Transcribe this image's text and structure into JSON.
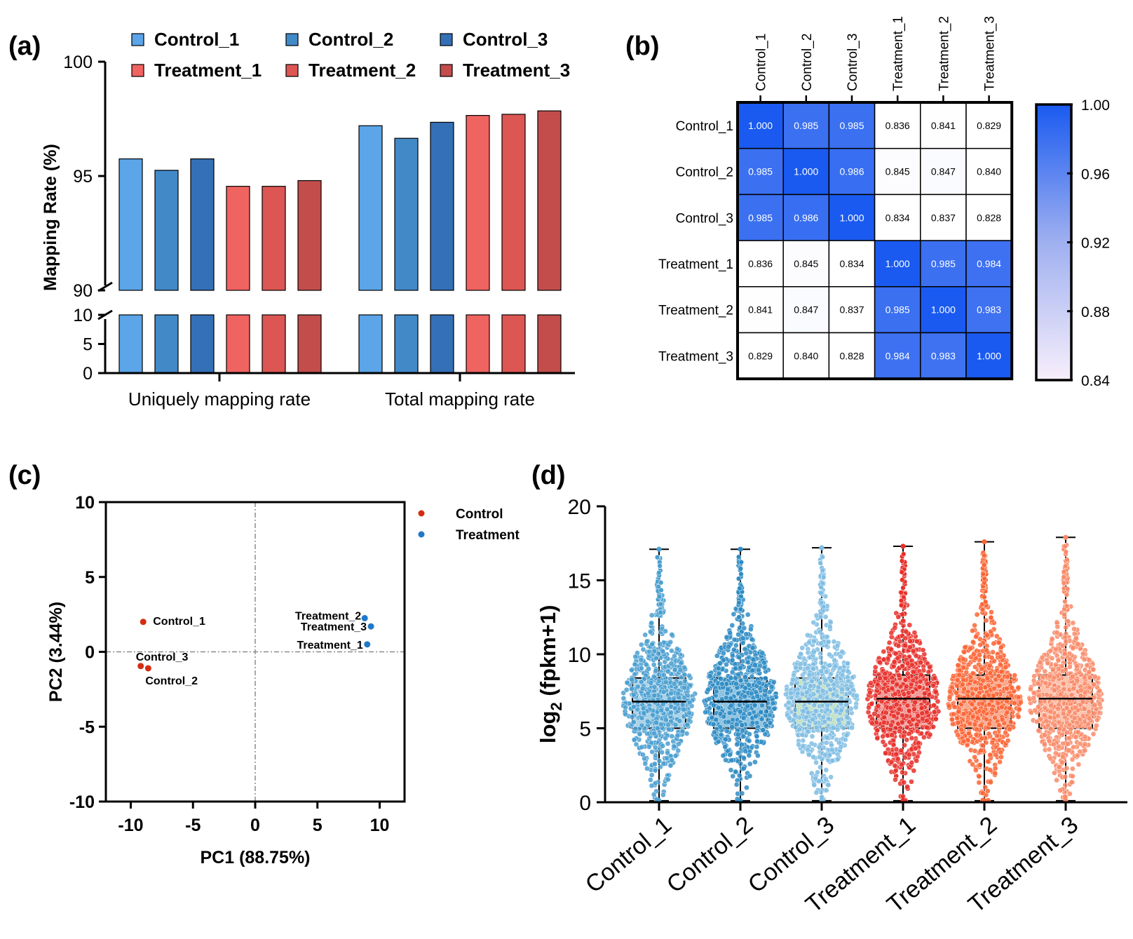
{
  "panels": {
    "a": {
      "label": "(a)"
    },
    "b": {
      "label": "(b)"
    },
    "c": {
      "label": "(c)"
    },
    "d": {
      "label": "(d)"
    }
  },
  "chart_data": [
    {
      "id": "a",
      "type": "bar",
      "ylabel": "Mapping Rate (%)",
      "groups": [
        "Uniquely mapping rate",
        "Total mapping rate"
      ],
      "series": [
        {
          "name": "Control_1",
          "color": "#5ba5e8",
          "values": [
            95.75,
            97.2
          ]
        },
        {
          "name": "Control_2",
          "color": "#4289c8",
          "values": [
            95.25,
            96.65
          ]
        },
        {
          "name": "Control_3",
          "color": "#3470b6",
          "values": [
            95.75,
            97.35
          ]
        },
        {
          "name": "Treatment_1",
          "color": "#ef6461",
          "values": [
            94.55,
            97.65
          ]
        },
        {
          "name": "Treatment_2",
          "color": "#dc5653",
          "values": [
            94.55,
            97.7
          ]
        },
        {
          "name": "Treatment_3",
          "color": "#c24d4b",
          "values": [
            94.8,
            97.85
          ]
        }
      ],
      "yaxis_upper": {
        "range": [
          90,
          100
        ],
        "ticks": [
          "90",
          "95",
          "100"
        ]
      },
      "yaxis_lower": {
        "range": [
          0,
          10
        ],
        "ticks": [
          "0",
          "5",
          "10"
        ]
      }
    },
    {
      "id": "b",
      "type": "heatmap",
      "labels": [
        "Control_1",
        "Control_2",
        "Control_3",
        "Treatment_1",
        "Treatment_2",
        "Treatment_3"
      ],
      "matrix": [
        [
          "1.000",
          "0.985",
          "0.985",
          "0.836",
          "0.841",
          "0.829"
        ],
        [
          "0.985",
          "1.000",
          "0.986",
          "0.845",
          "0.847",
          "0.840"
        ],
        [
          "0.985",
          "0.986",
          "1.000",
          "0.834",
          "0.837",
          "0.828"
        ],
        [
          "0.836",
          "0.845",
          "0.834",
          "1.000",
          "0.985",
          "0.984"
        ],
        [
          "0.841",
          "0.847",
          "0.837",
          "0.985",
          "1.000",
          "0.983"
        ],
        [
          "0.829",
          "0.840",
          "0.828",
          "0.984",
          "0.983",
          "1.000"
        ]
      ],
      "color_range": [
        0.84,
        1.0
      ],
      "colorbar_ticks": [
        "1.00",
        "0.96",
        "0.92",
        "0.88",
        "0.84"
      ],
      "color_low": "#ffffff",
      "color_high": "#1a5af0"
    },
    {
      "id": "c",
      "type": "scatter",
      "xlabel": "PC1 (88.75%)",
      "ylabel": "PC2 (3.44%)",
      "xlim": [
        -12,
        12
      ],
      "ylim": [
        -10,
        10
      ],
      "xticks": [
        "-10",
        "-5",
        "0",
        "5",
        "10"
      ],
      "yticks": [
        "10",
        "5",
        "0",
        "-5",
        "-10"
      ],
      "legend": [
        {
          "name": "Control",
          "color": "#d42d12"
        },
        {
          "name": "Treatment",
          "color": "#1f78c8"
        }
      ],
      "points": [
        {
          "label": "Control_1",
          "group": "Control",
          "x": -9.0,
          "y": 2.0
        },
        {
          "label": "Control_3",
          "group": "Control",
          "x": -9.2,
          "y": -0.95
        },
        {
          "label": "Control_2",
          "group": "Control",
          "x": -8.6,
          "y": -1.1
        },
        {
          "label": "Treatment_2",
          "group": "Treatment",
          "x": 8.8,
          "y": 2.25
        },
        {
          "label": "Treatment_3",
          "group": "Treatment",
          "x": 9.3,
          "y": 1.7
        },
        {
          "label": "Treatment_1",
          "group": "Treatment",
          "x": 9.0,
          "y": 0.5
        }
      ]
    },
    {
      "id": "d",
      "type": "box",
      "ylabel": "log2 (fpkm+1)",
      "ylabel_main": "log",
      "ylabel_sub": "2",
      "ylabel_rest": " (fpkm+1)",
      "ylim": [
        0,
        20
      ],
      "yticks": [
        "0",
        "5",
        "10",
        "15",
        "20"
      ],
      "categories": [
        "Control_1",
        "Control_2",
        "Control_3",
        "Treatment_1",
        "Treatment_2",
        "Treatment_3"
      ],
      "boxes": [
        {
          "name": "Control_1",
          "color": "#4a9fd0",
          "fill": "#a9d2e8",
          "q1": 5.0,
          "median": 6.8,
          "q3": 8.4,
          "min": 0.1,
          "max": 17.1
        },
        {
          "name": "Control_2",
          "color": "#2e8cc4",
          "fill": "#8dc3e2",
          "q1": 5.0,
          "median": 6.8,
          "q3": 8.4,
          "min": 0.1,
          "max": 17.1
        },
        {
          "name": "Control_3",
          "color": "#7fbde3",
          "fill": "#c5e3c5",
          "q1": 5.0,
          "median": 6.8,
          "q3": 8.4,
          "min": 0.1,
          "max": 17.2
        },
        {
          "name": "Treatment_1",
          "color": "#e8302a",
          "fill": "#f09a95",
          "q1": 5.0,
          "median": 7.0,
          "q3": 8.6,
          "min": 0.1,
          "max": 17.3
        },
        {
          "name": "Treatment_2",
          "color": "#fb6535",
          "fill": "#f8a98e",
          "q1": 5.0,
          "median": 7.0,
          "q3": 8.6,
          "min": 0.1,
          "max": 17.6
        },
        {
          "name": "Treatment_3",
          "color": "#f98b68",
          "fill": "#fbc2ac",
          "q1": 5.0,
          "median": 7.0,
          "q3": 8.6,
          "min": 0.1,
          "max": 17.9
        }
      ]
    }
  ]
}
